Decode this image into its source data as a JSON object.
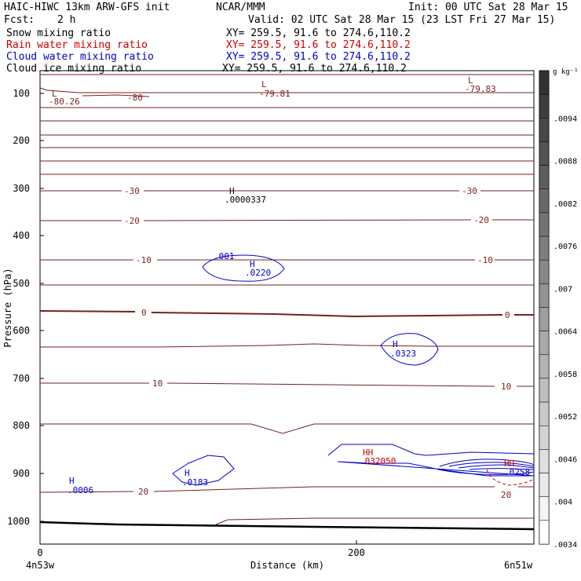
{
  "header": {
    "model": "HAIC-HIWC 13km ARW-GFS init",
    "org": "NCAR/MMM",
    "init": "Init: 00 UTC Sat 28 Mar 15",
    "fcst_label": "Fcst:",
    "fcst_value": "2 h",
    "valid": "Valid: 02 UTC Sat 28 Mar 15 (23 LST Fri 27 Mar 15)"
  },
  "fields": [
    {
      "name": "Snow mixing ratio",
      "xy": "XY= 259.5, 91.6 to 274.6,110.2",
      "color": "#000000"
    },
    {
      "name": "Rain water mixing ratio",
      "xy": "XY= 259.5, 91.6 to 274.6,110.2",
      "color": "#cc0000"
    },
    {
      "name": "Cloud water mixing ratio",
      "xy": "XY= 259.5, 91.6 to 274.6,110.2",
      "color": "#0000cc"
    },
    {
      "name": "Cloud ice mixing ratio",
      "xy": "XY= 259.5, 91.6 to 274.6,110.2",
      "color": "#000000"
    }
  ],
  "chart_data": {
    "type": "contour",
    "xlabel": "Distance (km)",
    "ylabel": "Pressure (hPa)",
    "xlim": [
      0,
      310
    ],
    "ylim": [
      1050,
      50
    ],
    "x_ticks": [
      "0",
      "200"
    ],
    "y_ticks": [
      "100",
      "200",
      "300",
      "400",
      "500",
      "600",
      "700",
      "800",
      "900",
      "1000"
    ],
    "x_end_labels": {
      "left": "4n53w",
      "right": "6n51w"
    },
    "colorbar": {
      "unit": "g kg⁻¹",
      "labels": [
        ".0094",
        ".0088",
        ".0082",
        ".0076",
        ".007",
        ".0064",
        ".0058",
        ".0052",
        ".0046",
        ".004",
        ".0034"
      ]
    },
    "temperature_labels": [
      "-80.26",
      "-80",
      "-79.81",
      "-79.83",
      "-30",
      "-20",
      "-10",
      "0",
      "10",
      "20",
      "-30",
      "-20",
      "-10",
      "0",
      "10",
      "20"
    ],
    "temperature_lows": [
      {
        "mark": "L",
        "value": "-80.26"
      },
      {
        "mark": "L",
        "value": "-79.81"
      },
      {
        "mark": "L",
        "value": "-79.83"
      }
    ],
    "temperature_highs": [
      {
        "mark": "H",
        "value": ".0000337"
      }
    ],
    "cloud_water_maxima": [
      {
        "mark": "H",
        "value": ".0220",
        "label": ".001"
      },
      {
        "mark": "H",
        "value": ".0323"
      },
      {
        "mark": "H",
        "value": ".0183"
      },
      {
        "mark": "H",
        "value": ".0006"
      },
      {
        "mark": "H",
        "value": ".0258"
      }
    ],
    "rain_maxima": [
      {
        "mark": "HH",
        "value": ".032050"
      },
      {
        "mark": "HH",
        "value": ".0258"
      }
    ]
  }
}
